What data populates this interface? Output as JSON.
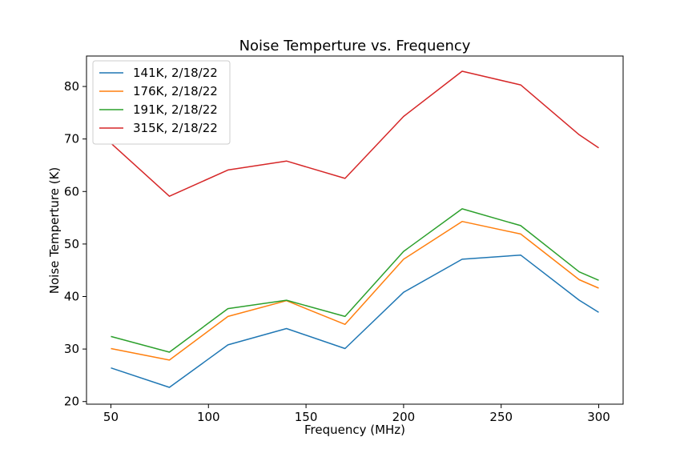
{
  "chart_data": {
    "type": "line",
    "title": "Noise Temperture vs. Frequency",
    "xlabel": "Frequency (MHz)",
    "ylabel": "Noise Temperture (K)",
    "xlim": [
      37.5,
      312.5
    ],
    "ylim": [
      19.5,
      85.8
    ],
    "xticks": [
      50,
      100,
      150,
      200,
      250,
      300
    ],
    "yticks": [
      20,
      30,
      40,
      50,
      60,
      70,
      80
    ],
    "grid": false,
    "legend_position": "top-left",
    "x": [
      50,
      80,
      110,
      140,
      170,
      200,
      230,
      260,
      290,
      300
    ],
    "series": [
      {
        "name": "141K, 2/18/22",
        "color": "#1f77b4",
        "values": [
          26.4,
          22.7,
          30.8,
          33.9,
          30.1,
          40.8,
          47.1,
          47.9,
          39.3,
          37.0
        ]
      },
      {
        "name": "176K, 2/18/22",
        "color": "#ff7f0e",
        "values": [
          30.1,
          27.9,
          36.2,
          39.2,
          34.7,
          47.1,
          54.3,
          51.9,
          43.2,
          41.6
        ]
      },
      {
        "name": "191K, 2/18/22",
        "color": "#2ca02c",
        "values": [
          32.4,
          29.4,
          37.7,
          39.3,
          36.2,
          48.6,
          56.7,
          53.5,
          44.7,
          43.1
        ]
      },
      {
        "name": "315K, 2/18/22",
        "color": "#d62728",
        "values": [
          69.2,
          59.1,
          64.1,
          65.8,
          62.5,
          74.3,
          82.9,
          80.3,
          70.8,
          68.3
        ]
      }
    ]
  }
}
